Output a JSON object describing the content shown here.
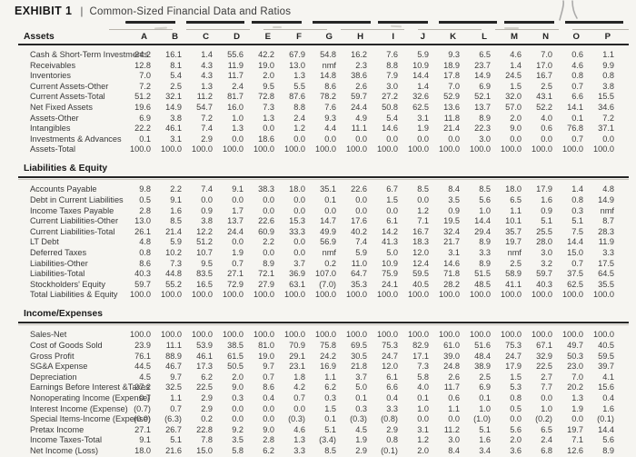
{
  "title": {
    "exhibit": "EXHIBIT 1",
    "separator": "|",
    "text": "Common-Sized Financial Data and Ratios"
  },
  "columns": [
    "A",
    "B",
    "C",
    "D",
    "E",
    "F",
    "G",
    "H",
    "I",
    "J",
    "K",
    "L",
    "M",
    "N",
    "O",
    "P"
  ],
  "sections": [
    {
      "name": "Assets",
      "rows": [
        {
          "label": "Cash & Short-Term Investments",
          "values": [
            "24.2",
            "16.1",
            "1.4",
            "55.6",
            "42.2",
            "67.9",
            "54.8",
            "16.2",
            "7.6",
            "5.9",
            "9.3",
            "6.5",
            "4.6",
            "7.0",
            "0.6",
            "1.1"
          ]
        },
        {
          "label": "Receivables",
          "values": [
            "12.8",
            "8.1",
            "4.3",
            "11.9",
            "19.0",
            "13.0",
            "nmf",
            "2.3",
            "8.8",
            "10.9",
            "18.9",
            "23.7",
            "1.4",
            "17.0",
            "4.6",
            "9.9"
          ]
        },
        {
          "label": "Inventories",
          "values": [
            "7.0",
            "5.4",
            "4.3",
            "11.7",
            "2.0",
            "1.3",
            "14.8",
            "38.6",
            "7.9",
            "14.4",
            "17.8",
            "14.9",
            "24.5",
            "16.7",
            "0.8",
            "0.8"
          ]
        },
        {
          "label": "Current Assets-Other",
          "values": [
            "7.2",
            "2.5",
            "1.3",
            "2.4",
            "9.5",
            "5.5",
            "8.6",
            "2.6",
            "3.0",
            "1.4",
            "7.0",
            "6.9",
            "1.5",
            "2.5",
            "0.7",
            "3.8"
          ]
        },
        {
          "label": "Current Assets-Total",
          "values": [
            "51.2",
            "32.1",
            "11.2",
            "81.7",
            "72.8",
            "87.6",
            "78.2",
            "59.7",
            "27.2",
            "32.6",
            "52.9",
            "52.1",
            "32.0",
            "43.1",
            "6.6",
            "15.5"
          ]
        },
        {
          "label": "Net Fixed Assets",
          "values": [
            "19.6",
            "14.9",
            "54.7",
            "16.0",
            "7.3",
            "8.8",
            "7.6",
            "24.4",
            "50.8",
            "62.5",
            "13.6",
            "13.7",
            "57.0",
            "52.2",
            "14.1",
            "34.6"
          ]
        },
        {
          "label": "Assets-Other",
          "values": [
            "6.9",
            "3.8",
            "7.2",
            "1.0",
            "1.3",
            "2.4",
            "9.3",
            "4.9",
            "5.4",
            "3.1",
            "11.8",
            "8.9",
            "2.0",
            "4.0",
            "0.1",
            "7.2"
          ]
        },
        {
          "label": "Intangibles",
          "values": [
            "22.2",
            "46.1",
            "7.4",
            "1.3",
            "0.0",
            "1.2",
            "4.4",
            "11.1",
            "14.6",
            "1.9",
            "21.4",
            "22.3",
            "9.0",
            "0.6",
            "76.8",
            "37.1"
          ]
        },
        {
          "label": "Investments & Advances",
          "values": [
            "0.1",
            "3.1",
            "2.9",
            "0.0",
            "18.6",
            "0.0",
            "0.0",
            "0.0",
            "0.0",
            "0.0",
            "0.0",
            "3.0",
            "0.0",
            "0.0",
            "0.7",
            "0.0"
          ]
        },
        {
          "label": "Assets-Total",
          "values": [
            "100.0",
            "100.0",
            "100.0",
            "100.0",
            "100.0",
            "100.0",
            "100.0",
            "100.0",
            "100.0",
            "100.0",
            "100.0",
            "100.0",
            "100.0",
            "100.0",
            "100.0",
            "100.0"
          ]
        }
      ]
    },
    {
      "name": "Liabilities & Equity",
      "rows": [
        {
          "label": "Accounts Payable",
          "values": [
            "9.8",
            "2.2",
            "7.4",
            "9.1",
            "38.3",
            "18.0",
            "35.1",
            "22.6",
            "6.7",
            "8.5",
            "8.4",
            "8.5",
            "18.0",
            "17.9",
            "1.4",
            "4.8"
          ]
        },
        {
          "label": "Debt in Current Liabilities",
          "values": [
            "0.5",
            "9.1",
            "0.0",
            "0.0",
            "0.0",
            "0.0",
            "0.1",
            "0.0",
            "1.5",
            "0.0",
            "3.5",
            "5.6",
            "6.5",
            "1.6",
            "0.8",
            "14.9"
          ]
        },
        {
          "label": "Income Taxes Payable",
          "values": [
            "2.8",
            "1.6",
            "0.9",
            "1.7",
            "0.0",
            "0.0",
            "0.0",
            "0.0",
            "0.0",
            "1.2",
            "0.9",
            "1.0",
            "1.1",
            "0.9",
            "0.3",
            "nmf"
          ]
        },
        {
          "label": "Current Liabilities-Other",
          "values": [
            "13.0",
            "8.5",
            "3.8",
            "13.7",
            "22.6",
            "15.3",
            "14.7",
            "17.6",
            "6.1",
            "7.1",
            "19.5",
            "14.4",
            "10.1",
            "5.1",
            "5.1",
            "8.7"
          ]
        },
        {
          "label": "Current Liabilities-Total",
          "values": [
            "26.1",
            "21.4",
            "12.2",
            "24.4",
            "60.9",
            "33.3",
            "49.9",
            "40.2",
            "14.2",
            "16.7",
            "32.4",
            "29.4",
            "35.7",
            "25.5",
            "7.5",
            "28.3"
          ]
        },
        {
          "label": "LT Debt",
          "values": [
            "4.8",
            "5.9",
            "51.2",
            "0.0",
            "2.2",
            "0.0",
            "56.9",
            "7.4",
            "41.3",
            "18.3",
            "21.7",
            "8.9",
            "19.7",
            "28.0",
            "14.4",
            "11.9"
          ]
        },
        {
          "label": "Deferred Taxes",
          "values": [
            "0.8",
            "10.2",
            "10.7",
            "1.9",
            "0.0",
            "0.0",
            "nmf",
            "5.9",
            "5.0",
            "12.0",
            "3.1",
            "3.3",
            "nmf",
            "3.0",
            "15.0",
            "3.3"
          ]
        },
        {
          "label": "Liabilities-Other",
          "values": [
            "8.6",
            "7.3",
            "9.5",
            "0.7",
            "8.9",
            "3.7",
            "0.2",
            "11.0",
            "10.9",
            "12.4",
            "14.6",
            "8.9",
            "2.5",
            "3.2",
            "0.7",
            "17.5"
          ]
        },
        {
          "label": "Liabilities-Total",
          "values": [
            "40.3",
            "44.8",
            "83.5",
            "27.1",
            "72.1",
            "36.9",
            "107.0",
            "64.7",
            "75.9",
            "59.5",
            "71.8",
            "51.5",
            "58.9",
            "59.7",
            "37.5",
            "64.5"
          ]
        },
        {
          "label": "Stockholders' Equity",
          "values": [
            "59.7",
            "55.2",
            "16.5",
            "72.9",
            "27.9",
            "63.1",
            "(7.0)",
            "35.3",
            "24.1",
            "40.5",
            "28.2",
            "48.5",
            "41.1",
            "40.3",
            "62.5",
            "35.5"
          ]
        },
        {
          "label": "Total Liabilities & Equity",
          "values": [
            "100.0",
            "100.0",
            "100.0",
            "100.0",
            "100.0",
            "100.0",
            "100.0",
            "100.0",
            "100.0",
            "100.0",
            "100.0",
            "100.0",
            "100.0",
            "100.0",
            "100.0",
            "100.0"
          ]
        }
      ]
    },
    {
      "name": "Income/Expenses",
      "rows": [
        {
          "label": "Sales-Net",
          "values": [
            "100.0",
            "100.0",
            "100.0",
            "100.0",
            "100.0",
            "100.0",
            "100.0",
            "100.0",
            "100.0",
            "100.0",
            "100.0",
            "100.0",
            "100.0",
            "100.0",
            "100.0",
            "100.0"
          ]
        },
        {
          "label": "Cost of Goods Sold",
          "values": [
            "23.9",
            "11.1",
            "53.9",
            "38.5",
            "81.0",
            "70.9",
            "75.8",
            "69.5",
            "75.3",
            "82.9",
            "61.0",
            "51.6",
            "75.3",
            "67.1",
            "49.7",
            "40.5"
          ]
        },
        {
          "label": "Gross Profit",
          "values": [
            "76.1",
            "88.9",
            "46.1",
            "61.5",
            "19.0",
            "29.1",
            "24.2",
            "30.5",
            "24.7",
            "17.1",
            "39.0",
            "48.4",
            "24.7",
            "32.9",
            "50.3",
            "59.5"
          ]
        },
        {
          "label": "SG&A Expense",
          "values": [
            "44.5",
            "46.7",
            "17.3",
            "50.5",
            "9.7",
            "23.1",
            "16.9",
            "21.8",
            "12.0",
            "7.3",
            "24.8",
            "38.9",
            "17.9",
            "22.5",
            "23.0",
            "39.7"
          ]
        },
        {
          "label": "Depreciation",
          "values": [
            "4.5",
            "9.7",
            "6.2",
            "2.0",
            "0.7",
            "1.8",
            "1.1",
            "3.7",
            "6.1",
            "5.8",
            "2.6",
            "2.5",
            "1.5",
            "2.7",
            "7.0",
            "4.1"
          ]
        },
        {
          "label": "Earnings Before Interest &Taxes",
          "values": [
            "27.2",
            "32.5",
            "22.5",
            "9.0",
            "8.6",
            "4.2",
            "6.2",
            "5.0",
            "6.6",
            "4.0",
            "11.7",
            "6.9",
            "5.3",
            "7.7",
            "20.2",
            "15.6"
          ]
        },
        {
          "label": "Nonoperating Income (Expense)",
          "values": [
            "0.7",
            "1.1",
            "2.9",
            "0.3",
            "0.4",
            "0.7",
            "0.3",
            "0.1",
            "0.4",
            "0.1",
            "0.6",
            "0.1",
            "0.8",
            "0.0",
            "1.3",
            "0.4"
          ]
        },
        {
          "label": "Interest Income (Expense)",
          "values": [
            "(0.7)",
            "0.7",
            "2.9",
            "0.0",
            "0.0",
            "0.0",
            "1.5",
            "0.3",
            "3.3",
            "1.0",
            "1.1",
            "1.0",
            "0.5",
            "1.0",
            "1.9",
            "1.6"
          ]
        },
        {
          "label": "Special Items-Income (Expense)",
          "values": [
            "(0.0)",
            "(6.3)",
            "0.2",
            "0.0",
            "0.0",
            "(0.3)",
            "0.1",
            "(0.3)",
            "(0.8)",
            "0.0",
            "0.0",
            "(1.0)",
            "0.0",
            "(0.2)",
            "0.0",
            "(0.1)"
          ]
        },
        {
          "label": "Pretax Income",
          "values": [
            "27.1",
            "26.7",
            "22.8",
            "9.2",
            "9.0",
            "4.6",
            "5.1",
            "4.5",
            "2.9",
            "3.1",
            "11.2",
            "5.1",
            "5.6",
            "6.5",
            "19.7",
            "14.4"
          ]
        },
        {
          "label": "Income Taxes-Total",
          "values": [
            "9.1",
            "5.1",
            "7.8",
            "3.5",
            "2.8",
            "1.3",
            "(3.4)",
            "1.9",
            "0.8",
            "1.2",
            "3.0",
            "1.6",
            "2.0",
            "2.4",
            "7.1",
            "5.6"
          ]
        },
        {
          "label": "Net Income (Loss)",
          "values": [
            "18.0",
            "21.6",
            "15.0",
            "5.8",
            "6.2",
            "3.3",
            "8.5",
            "2.9",
            "(0.1)",
            "2.0",
            "8.4",
            "3.4",
            "3.6",
            "6.8",
            "12.6",
            "8.9"
          ]
        }
      ]
    }
  ]
}
